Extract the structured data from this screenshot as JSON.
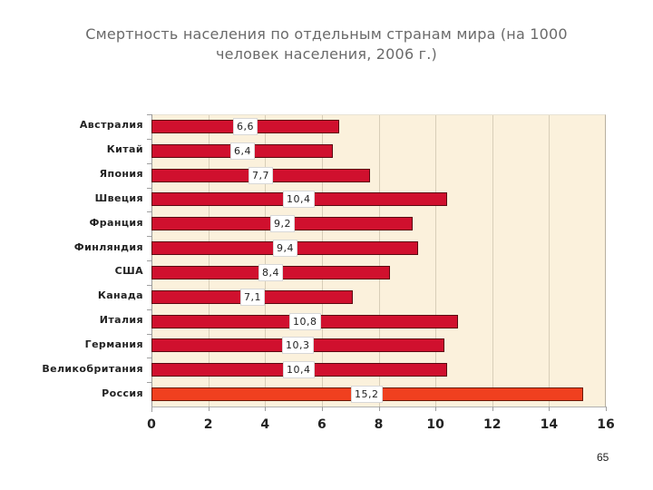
{
  "slide": {
    "title_line1": "Смертность населения по отдельным странам мира (на 1000",
    "title_line2": "человек населения, 2006 г.)",
    "page_number": "65"
  },
  "colors": {
    "bar": "#d0102e",
    "highlight_bar": "#f0401f",
    "plot_background": "#fbf1dc"
  },
  "chart_data": {
    "type": "bar",
    "orientation": "horizontal",
    "title": "Смертность населения по отдельным странам мира (на 1000 человек населения, 2006 г.)",
    "xlabel": "",
    "ylabel": "",
    "categories": [
      "Австралия",
      "Китай",
      "Япония",
      "Швеция",
      "Франция",
      "Финляндия",
      "США",
      "Канада",
      "Италия",
      "Германия",
      "Великобритания",
      "Россия"
    ],
    "values": [
      6.6,
      6.4,
      7.7,
      10.4,
      9.2,
      9.4,
      8.4,
      7.1,
      10.8,
      10.3,
      10.4,
      15.2
    ],
    "value_labels": [
      "6,6",
      "6,4",
      "7,7",
      "10,4",
      "9,2",
      "9,4",
      "8,4",
      "7,1",
      "10,8",
      "10,3",
      "10,4",
      "15,2"
    ],
    "highlighted": [
      "Россия"
    ],
    "xlim": [
      0,
      16
    ],
    "xticks": [
      "0",
      "2",
      "4",
      "6",
      "8",
      "10",
      "12",
      "14",
      "16"
    ],
    "grid": "vertical",
    "legend": "none"
  }
}
